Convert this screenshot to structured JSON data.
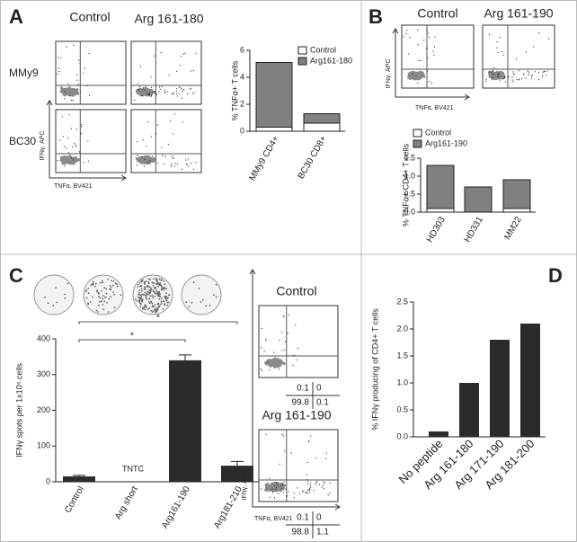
{
  "chart_data": [
    {
      "type": "bar",
      "panel": "A",
      "y_label": "% TNFα+ T cells",
      "categories": [
        "MMy9 CD4+",
        "BC30 CD8+"
      ],
      "series": [
        {
          "name": "Control",
          "color": "#ffffff",
          "values": [
            0.3,
            0.6
          ]
        },
        {
          "name": "Arg161-180",
          "color": "#808080",
          "values": [
            4.8,
            0.7
          ]
        }
      ],
      "ylim": [
        0,
        6
      ],
      "yticks": [
        0,
        2,
        4,
        6
      ],
      "flow": {
        "titles": [
          "Control",
          "Arg 161-180"
        ],
        "rows": [
          "MMy9",
          "BC30"
        ],
        "y_label": "IFNγ, APC",
        "x_label": "TNFα, BV421"
      }
    },
    {
      "type": "bar",
      "panel": "B",
      "y_label": "% TNFα+ CD4+ T cells",
      "categories": [
        "HD303",
        "HD331",
        "MM22"
      ],
      "series": [
        {
          "name": "Control",
          "color": "#ffffff",
          "values": [
            0.1,
            0,
            0.1
          ]
        },
        {
          "name": "Arg161-190",
          "color": "#808080",
          "values": [
            1.2,
            0.7,
            0.8
          ]
        }
      ],
      "ylim": [
        0,
        1.5
      ],
      "yticks": [
        {
          "value": 0,
          "label": "0.0"
        },
        0.5,
        {
          "value": 1,
          "label": "1.0"
        },
        1.5
      ],
      "flow": {
        "titles": [
          "Control",
          "Arg 161-190"
        ],
        "y_label": "IFNγ, APC",
        "x_label": "TNFα, BV421"
      }
    },
    {
      "type": "bar",
      "panel": "C",
      "y_label": "IFNγ spots per 1x10⁵ cells",
      "categories": [
        "Control",
        "Arg short",
        "Arg161-190",
        "Arg181-210"
      ],
      "values": [
        15,
        null,
        340,
        45
      ],
      "errors": [
        3,
        null,
        15,
        12
      ],
      "color": "#2b2b2b",
      "annotation": "TNTC",
      "significance": [
        {
          "from": 0,
          "to": 3,
          "label": "*"
        },
        {
          "from": 0,
          "to": 2,
          "label": "*"
        }
      ],
      "ylim": [
        0,
        400
      ],
      "yticks": [
        0,
        100,
        200,
        300,
        400
      ],
      "flow": {
        "titles": [
          "Control",
          "Arg 161-190"
        ],
        "y_label": "IFNγ, APC",
        "x_label": "TNFα, BV421",
        "quadrants": [
          [
            0.1,
            0,
            99.8,
            0.1
          ],
          [
            0.1,
            0,
            98.8,
            1.1
          ]
        ]
      }
    },
    {
      "type": "bar",
      "panel": "D",
      "y_label": "% IFNγ producing of CD4+ T cells",
      "categories": [
        "No peptide",
        "Arg 161-180",
        "Arg 171-190",
        "Arg 181-200"
      ],
      "values": [
        0.1,
        1.0,
        1.8,
        2.1
      ],
      "color": "#2b2b2b",
      "ylim": [
        0,
        2.5
      ],
      "yticks": [
        {
          "value": 0,
          "label": "0.0"
        },
        0.5,
        {
          "value": 1,
          "label": "1.0"
        },
        1.5,
        {
          "value": 2,
          "label": "2.0"
        },
        2.5
      ]
    }
  ]
}
